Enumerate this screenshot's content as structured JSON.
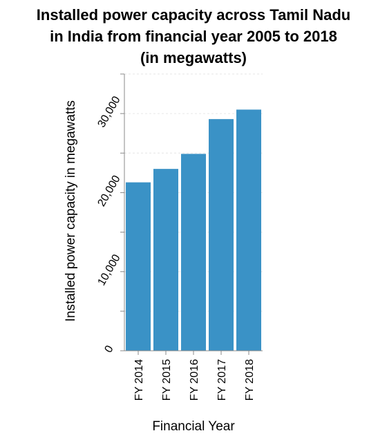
{
  "chart_data": {
    "type": "bar",
    "title_lines": [
      "Installed power capacity across Tamil Nadu",
      "in India from financial year 2005 to 2018",
      "(in megawatts)"
    ],
    "xlabel": "Financial Year",
    "ylabel": "Installed power capacity in megawatts",
    "categories": [
      "FY 2014",
      "FY 2015",
      "FY 2016",
      "FY 2017",
      "FY 2018"
    ],
    "values": [
      21300,
      23000,
      24900,
      29300,
      30500
    ],
    "ylim": [
      0,
      35000
    ],
    "yticks": [
      0,
      10000,
      20000,
      30000
    ],
    "ytick_labels": [
      "0",
      "10,000",
      "20,000",
      "30,000"
    ],
    "minor_yticks": [
      5000,
      15000,
      25000,
      35000
    ],
    "grid": "horizontal dashed",
    "bar_color": "#3a92c6"
  }
}
